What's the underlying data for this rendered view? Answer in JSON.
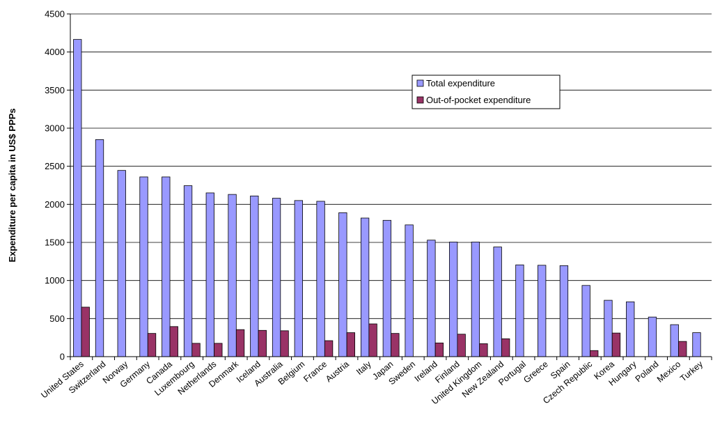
{
  "chart_data": {
    "type": "bar",
    "title": "",
    "xlabel": "",
    "ylabel": "Expenditure per capita in US$ PPPs",
    "ylim": [
      0,
      4500
    ],
    "yticks": [
      0,
      500,
      1000,
      1500,
      2000,
      2500,
      3000,
      3500,
      4000,
      4500
    ],
    "grid": true,
    "legend": "top-right",
    "categories": [
      "United States",
      "Switzerland",
      "Norway",
      "Germany",
      "Canada",
      "Luxembourg",
      "Netherlands",
      "Denmark",
      "Iceland",
      "Australia",
      "Belgium",
      "France",
      "Austria",
      "Italy",
      "Japan",
      "Sweden",
      "Ireland",
      "Finland",
      "United Kingdom",
      "New Zealand",
      "Portugal",
      "Greece",
      "Spain",
      "Czech Republic",
      "Korea",
      "Hungary",
      "Poland",
      "Mexico",
      "Turkey"
    ],
    "series": [
      {
        "name": "Total expenditure",
        "color": "#9999ff",
        "values": [
          4165,
          2850,
          2445,
          2360,
          2360,
          2245,
          2150,
          2130,
          2110,
          2080,
          2050,
          2040,
          1890,
          1820,
          1790,
          1730,
          1530,
          1505,
          1505,
          1440,
          1205,
          1200,
          1195,
          935,
          740,
          720,
          520,
          420,
          315
        ]
      },
      {
        "name": "Out-of-pocket expenditure",
        "color": "#993366",
        "values": [
          650,
          null,
          null,
          305,
          395,
          175,
          175,
          355,
          345,
          340,
          null,
          210,
          315,
          430,
          305,
          null,
          180,
          295,
          170,
          235,
          null,
          null,
          null,
          80,
          310,
          null,
          null,
          200,
          null
        ]
      }
    ]
  }
}
